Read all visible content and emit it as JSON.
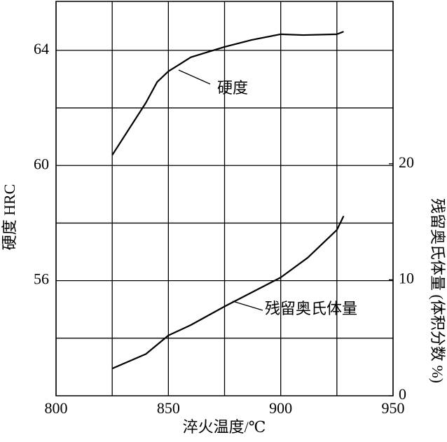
{
  "chart_data": {
    "type": "line",
    "x_label": "淬火温度/℃",
    "y_label": "硬度 HRC",
    "y2_label": "残留奥氏体量 (体积分数 %)",
    "xlim": [
      800,
      950
    ],
    "xticks": [
      800,
      850,
      900,
      950
    ],
    "minor_xticks": [
      825,
      875,
      925
    ],
    "ylim": [
      52,
      65.7
    ],
    "yticks": [
      56,
      60,
      64
    ],
    "minor_yticks": [
      54,
      58,
      62
    ],
    "y2lim": [
      0,
      34
    ],
    "y2ticks": [
      0,
      10,
      20
    ],
    "grid": true,
    "series": [
      {
        "name": "硬度",
        "color": "#000000",
        "x": [
          825,
          840,
          845,
          850,
          860,
          875,
          887,
          900,
          910,
          925,
          928
        ],
        "values": [
          60.36,
          62.18,
          62.9,
          63.27,
          63.76,
          64.12,
          64.36,
          64.56,
          64.53,
          64.56,
          64.65
        ]
      },
      {
        "name": "残留奥氏体量",
        "color": "#000000",
        "axis": "y2",
        "x": [
          825,
          840,
          850,
          860,
          875,
          887,
          900,
          912,
          925,
          928
        ],
        "values": [
          2.35,
          3.6,
          5.2,
          6.1,
          7.7,
          8.9,
          10.2,
          11.9,
          14.3,
          15.5
        ]
      }
    ]
  }
}
